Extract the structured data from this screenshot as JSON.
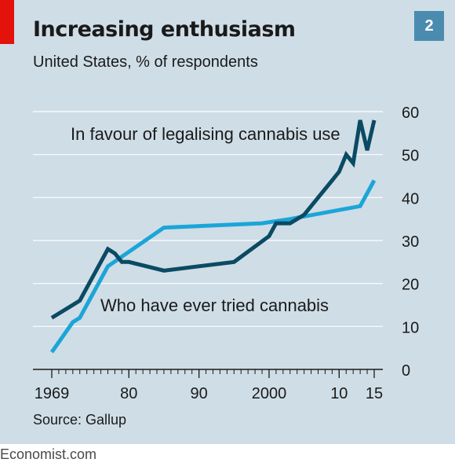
{
  "header": {
    "title": "Increasing enthusiasm",
    "subtitle": "United States, % of respondents",
    "badge": "2"
  },
  "source": "Source: Gallup",
  "footer": "Economist.com",
  "colors": {
    "background": "#cfdde6",
    "red_tab": "#e3120b",
    "badge": "#4a8bb0",
    "favour_line": "#0b4a63",
    "tried_line": "#1ba5d8",
    "gridline": "#ffffff"
  },
  "chart_data": {
    "type": "line",
    "title": "Increasing enthusiasm",
    "subtitle": "United States, % of respondents",
    "xlim": [
      1969,
      2015
    ],
    "ylim": [
      0,
      60
    ],
    "y_ticks": [
      0,
      10,
      20,
      30,
      40,
      50,
      60
    ],
    "y_axis_side": "right",
    "x_ticks": [
      {
        "value": 1969,
        "label": "1969"
      },
      {
        "value": 1980,
        "label": "80"
      },
      {
        "value": 1990,
        "label": "90"
      },
      {
        "value": 2000,
        "label": "2000"
      },
      {
        "value": 2010,
        "label": "10"
      },
      {
        "value": 2015,
        "label": "15"
      }
    ],
    "grid": true,
    "series": [
      {
        "name": "In favour of legalising cannabis use",
        "color": "#0b4a63",
        "points": [
          [
            1969,
            12
          ],
          [
            1972,
            15
          ],
          [
            1973,
            16
          ],
          [
            1977,
            28
          ],
          [
            1978,
            27
          ],
          [
            1979,
            25
          ],
          [
            1980,
            25
          ],
          [
            1985,
            23
          ],
          [
            1995,
            25
          ],
          [
            2000,
            31
          ],
          [
            2001,
            34
          ],
          [
            2003,
            34
          ],
          [
            2005,
            36
          ],
          [
            2009,
            44
          ],
          [
            2010,
            46
          ],
          [
            2011,
            50
          ],
          [
            2012,
            48
          ],
          [
            2013,
            58
          ],
          [
            2014,
            51
          ],
          [
            2015,
            58
          ]
        ]
      },
      {
        "name": "Who have ever tried cannabis",
        "color": "#1ba5d8",
        "points": [
          [
            1969,
            4
          ],
          [
            1972,
            11
          ],
          [
            1973,
            12
          ],
          [
            1977,
            24
          ],
          [
            1985,
            33
          ],
          [
            1999,
            34
          ],
          [
            2003,
            35
          ],
          [
            2013,
            38
          ],
          [
            2015,
            44
          ]
        ]
      }
    ]
  }
}
